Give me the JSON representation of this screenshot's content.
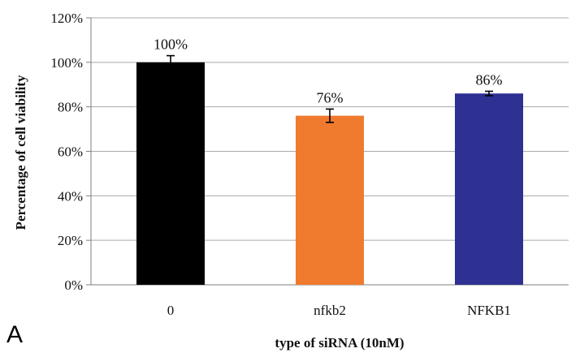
{
  "panel_label": "A",
  "chart_data": {
    "type": "bar",
    "categories": [
      "0",
      "nfkb2",
      "NFKB1"
    ],
    "values": [
      100,
      76,
      86
    ],
    "errors": [
      3,
      3,
      1
    ],
    "data_labels": [
      "100%",
      "76%",
      "86%"
    ],
    "bar_colors": [
      "#000000",
      "#f07a2e",
      "#2e3192"
    ],
    "xlabel": "type of siRNA (10nM)",
    "ylabel": "Percentage of cell viability",
    "ylim": [
      0,
      120
    ],
    "yticks": [
      0,
      20,
      40,
      60,
      80,
      100,
      120
    ],
    "ytick_labels": [
      "0%",
      "20%",
      "40%",
      "60%",
      "80%",
      "100%",
      "120%"
    ],
    "grid": true,
    "legend": "none"
  }
}
